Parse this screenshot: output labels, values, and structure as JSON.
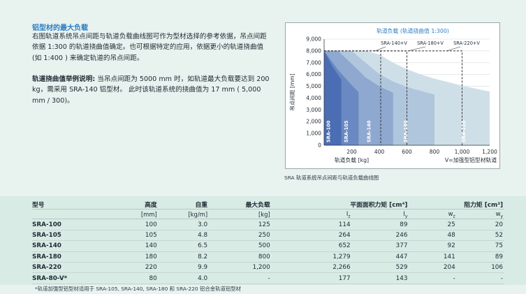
{
  "intro": {
    "heading": "铝型材的最大负载",
    "paragraph": "右图轨道系统吊点间距与轨道负载曲线图可作为型材选择的参考依据，吊点间距依据 1:300 的轨道挠曲值确定。也可根据特定的应用，依据更小的轨道挠曲值 (如 1:400 ) 来确定轨道的吊点间距。"
  },
  "example": {
    "lead": "轨道挠曲值举例说明:",
    "text": " 当吊点间距为 5000 mm 时，如轨道最大负载要达到 200 kg，需采用 SRA-140 铝型材。 此时该轨道系统的挠曲值为 17 mm ( 5,000 mm / 300)。"
  },
  "chart_data": {
    "type": "area",
    "title": "轨道负载 (轨道挠曲值 1:300)",
    "xlabel": "轨道负载 [kg]",
    "ylabel": "吊点间距 [mm]",
    "xlim": [
      0,
      1200
    ],
    "ylim": [
      0,
      9000
    ],
    "x_ticks": [
      "200",
      "400",
      "600",
      "800",
      "1,000",
      "1,200"
    ],
    "y_ticks": [
      "0",
      "1,000",
      "2,000",
      "3,000",
      "4,000",
      "5,000",
      "6,000",
      "7,000",
      "8,000",
      "9,000"
    ],
    "x_extra_label": "V=加强型铝型材轨道",
    "series": [
      {
        "name": "SRA-220",
        "x": [
          0,
          100,
          200,
          300,
          400,
          500,
          600,
          700,
          800,
          900,
          1000,
          1100,
          1200
        ],
        "y": [
          8000,
          8000,
          8000,
          8000,
          7700,
          7000,
          6450,
          6000,
          5650,
          5350,
          5050,
          4800,
          4550
        ],
        "color": "#cfdfe8"
      },
      {
        "name": "SRA-180",
        "x": [
          0,
          100,
          200,
          300,
          400,
          500,
          600,
          700,
          800
        ],
        "y": [
          8000,
          8000,
          8000,
          7000,
          6050,
          5400,
          4950,
          4600,
          4300
        ],
        "color": "#b0c6dd"
      },
      {
        "name": "SRA-140",
        "x": [
          0,
          100,
          200,
          300,
          400,
          500
        ],
        "y": [
          8000,
          8000,
          6900,
          5750,
          5000,
          4450
        ],
        "color": "#8ea8cf"
      },
      {
        "name": "SRA-105",
        "x": [
          0,
          100,
          200,
          250
        ],
        "y": [
          8000,
          6400,
          5100,
          4500
        ],
        "color": "#6a89c2"
      },
      {
        "name": "SRA-100",
        "x": [
          0,
          60,
          125
        ],
        "y": [
          8000,
          6700,
          5550
        ],
        "color": "#4a6db3"
      }
    ],
    "reinforced_lines": [
      {
        "name": "SRA-140+V",
        "x": [
          0,
          410,
          410
        ],
        "y": [
          8000,
          8000,
          0
        ]
      },
      {
        "name": "SRA-180+V",
        "x": [
          0,
          600,
          600
        ],
        "y": [
          8000,
          8000,
          0
        ]
      },
      {
        "name": "SRA-220+V",
        "x": [
          0,
          1000,
          1000
        ],
        "y": [
          8000,
          8000,
          0
        ]
      }
    ],
    "bar_labels": [
      {
        "text": "SRA-100",
        "x": 30
      },
      {
        "text": "SRA-105",
        "x": 160
      },
      {
        "text": "SRA-140",
        "x": 325
      },
      {
        "text": "SRA-180",
        "x": 590
      },
      {
        "text": "SRA-220",
        "x": 1010
      }
    ],
    "caption": "SRA 轨道系统吊点间距与轨道负载曲线图"
  },
  "table": {
    "headers": {
      "model": "型号",
      "height": "高度",
      "weight": "自重",
      "max_load": "最大负载",
      "moment": "平面面积力矩 [cm⁴]",
      "resist": "阻力矩 [cm³]"
    },
    "units": {
      "height": "[mm]",
      "weight": "[kg/m]",
      "max_load": "[kg]",
      "iz": "Iz",
      "iy": "Iy",
      "wz": "wz",
      "wy": "wy"
    },
    "rows": [
      [
        "SRA-100",
        "100",
        "3.0",
        "125",
        "114",
        "89",
        "25",
        "20"
      ],
      [
        "SRA-105",
        "105",
        "4.8",
        "250",
        "264",
        "246",
        "48",
        "52"
      ],
      [
        "SRA-140",
        "140",
        "6.5",
        "500",
        "652",
        "377",
        "92",
        "75"
      ],
      [
        "SRA-180",
        "180",
        "8.2",
        "800",
        "1,279",
        "447",
        "141",
        "89"
      ],
      [
        "SRA-220",
        "220",
        "9.9",
        "1,200",
        "2,266",
        "529",
        "204",
        "106"
      ],
      [
        "SRA-80-V*",
        "80",
        "4.0",
        "-",
        "177",
        "143",
        "-",
        "-"
      ]
    ],
    "footnote": "*轨道加强型铝型材适用于 SRA-105, SRA-140, SRA-180 和 SRA-220 铝合金轨道铝型材"
  }
}
